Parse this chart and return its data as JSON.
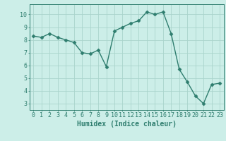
{
  "x": [
    0,
    1,
    2,
    3,
    4,
    5,
    6,
    7,
    8,
    9,
    10,
    11,
    12,
    13,
    14,
    15,
    16,
    17,
    18,
    19,
    20,
    21,
    22,
    23
  ],
  "y": [
    8.3,
    8.2,
    8.5,
    8.2,
    8.0,
    7.8,
    7.0,
    6.9,
    7.2,
    5.9,
    8.7,
    9.0,
    9.3,
    9.5,
    10.2,
    10.0,
    10.2,
    8.5,
    5.7,
    4.7,
    3.6,
    3.0,
    4.5,
    4.6
  ],
  "line_color": "#2e7d6e",
  "marker": "D",
  "markersize": 2.5,
  "linewidth": 1.0,
  "xlabel": "Humidex (Indice chaleur)",
  "xlabel_fontsize": 7,
  "xlim": [
    -0.5,
    23.5
  ],
  "ylim": [
    2.5,
    10.8
  ],
  "yticks": [
    3,
    4,
    5,
    6,
    7,
    8,
    9,
    10
  ],
  "xticks": [
    0,
    1,
    2,
    3,
    4,
    5,
    6,
    7,
    8,
    9,
    10,
    11,
    12,
    13,
    14,
    15,
    16,
    17,
    18,
    19,
    20,
    21,
    22,
    23
  ],
  "bg_color": "#cceee8",
  "grid_color": "#aad4cc",
  "tick_color": "#2e7d6e",
  "tick_fontsize": 6,
  "spine_color": "#2e7d6e"
}
